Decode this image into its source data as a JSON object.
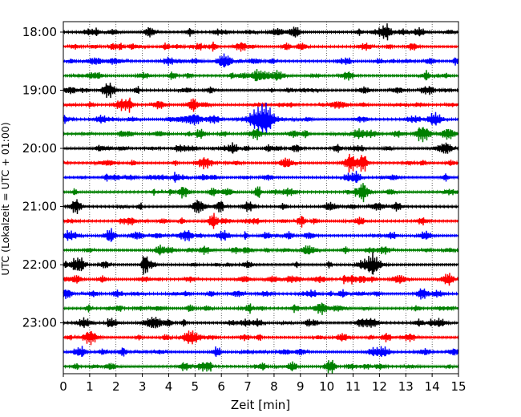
{
  "chart_data": {
    "type": "line",
    "title": "",
    "xlabel": "Zeit  [min]",
    "ylabel": "UTC (Lokalzeit = UTC + 01:00)",
    "xlim": [
      0,
      15
    ],
    "x_ticks": [
      "0",
      "1",
      "2",
      "3",
      "4",
      "5",
      "6",
      "7",
      "8",
      "9",
      "10",
      "11",
      "12",
      "13",
      "14",
      "15"
    ],
    "y_tick_labels": [
      "18:00",
      "19:00",
      "20:00",
      "21:00",
      "22:00",
      "23:00"
    ],
    "grid": "vertical dotted lines at each minute",
    "trace_minutes": 15,
    "trace_colors": [
      "#000000",
      "#ff0000",
      "#0000ff",
      "#008000"
    ],
    "traces_start": [
      "18:00",
      "18:15",
      "18:30",
      "18:45",
      "19:00",
      "19:15",
      "19:30",
      "19:45",
      "20:00",
      "20:15",
      "20:30",
      "20:45",
      "21:00",
      "21:15",
      "21:30",
      "21:45",
      "22:00",
      "22:15",
      "22:30",
      "22:45",
      "23:00",
      "23:15",
      "23:30",
      "23:45"
    ],
    "events": [
      {
        "trace_start": "19:30",
        "minute_range": [
          6.8,
          8.6
        ],
        "peak_minute": 7.6,
        "description": "largest amplitude burst"
      }
    ]
  }
}
